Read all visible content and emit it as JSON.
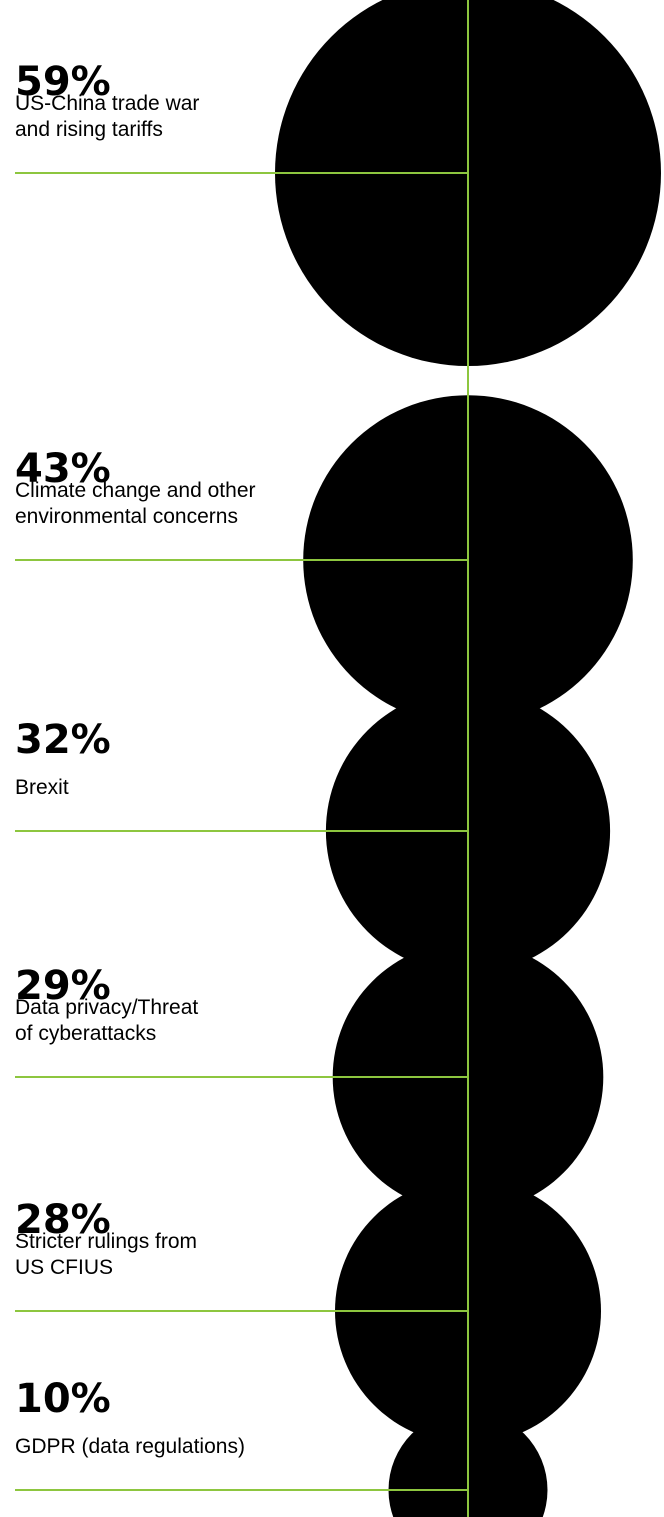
{
  "chart_data": {
    "type": "bubble",
    "values": [
      59,
      43,
      32,
      29,
      28,
      10
    ],
    "categories": [
      "US-China trade war and rising tariffs",
      "Climate change and other environmental concerns",
      "Brexit",
      "Data privacy/Threat of cyberattacks",
      "Stricter rulings from US CFIUS",
      "GDPR (data regulations)"
    ],
    "items": [
      {
        "value": 59,
        "value_label": "59%",
        "label_lines": [
          "US-China trade war",
          "and rising tariffs"
        ]
      },
      {
        "value": 43,
        "value_label": "43%",
        "label_lines": [
          "Climate change and other",
          "environmental concerns"
        ]
      },
      {
        "value": 32,
        "value_label": "32%",
        "label_lines": [
          "Brexit"
        ]
      },
      {
        "value": 29,
        "value_label": "29%",
        "label_lines": [
          "Data privacy/Threat",
          "of cyberattacks"
        ]
      },
      {
        "value": 28,
        "value_label": "28%",
        "label_lines": [
          "Stricter rulings from",
          "US CFIUS"
        ]
      },
      {
        "value": 10,
        "value_label": "10%",
        "label_lines": [
          "GDPR (data regulations)"
        ]
      }
    ],
    "colors": {
      "bubble": "#000000",
      "line": "#8dc63f",
      "text": "#000000",
      "background": "#ffffff"
    }
  }
}
